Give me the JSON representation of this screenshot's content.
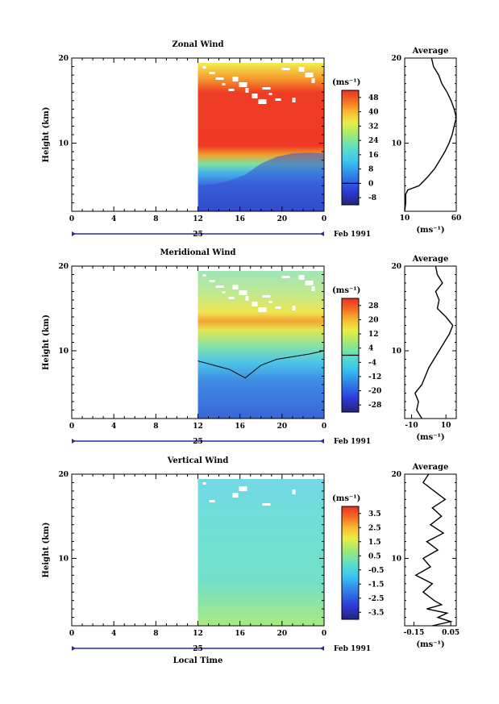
{
  "figure": {
    "x_axis_title": "Local Time",
    "date_label": "Feb 1991",
    "day_label": "25",
    "y_axis_title": "Height (km)",
    "unit_label": "(ms⁻¹)",
    "unit_label_avg": "(ms⁻¹)",
    "avg_title": "Average"
  },
  "chart_data": [
    {
      "type": "heatmap",
      "title": "Zonal Wind",
      "xlabel": "",
      "ylabel": "Height (km)",
      "x_ticks": [
        "0",
        "4",
        "8",
        "12",
        "16",
        "20",
        "0"
      ],
      "x_range_hours": [
        0,
        24
      ],
      "data_start_hour": 12,
      "y_ticks": [
        "10",
        "20"
      ],
      "ylim": [
        2,
        20
      ],
      "colorbar": {
        "ticks": [
          "48",
          "40",
          "32",
          "24",
          "16",
          "8",
          "0",
          "-8"
        ],
        "range": [
          -12,
          52
        ],
        "zero_line": 0
      },
      "jet_base_km": [
        5.0,
        5.2,
        5.6,
        6.3,
        7.6,
        8.4,
        8.8,
        8.9,
        8.8
      ],
      "average_profile": {
        "title": "Average",
        "xlabel": "(ms⁻¹)",
        "x_ticks": [
          "10",
          "60"
        ],
        "xlim": [
          10,
          60
        ],
        "y_ticks": [
          "10",
          "20"
        ],
        "heights_km": [
          2,
          3,
          4,
          4.5,
          5,
          6,
          7,
          8,
          9,
          10,
          11,
          12,
          13,
          14,
          15,
          16,
          17,
          18,
          19,
          20
        ],
        "values": [
          10,
          11,
          11,
          13,
          24,
          32,
          39,
          44,
          49,
          53,
          56,
          58,
          60,
          58,
          55,
          51,
          46,
          43,
          38,
          36
        ]
      }
    },
    {
      "type": "heatmap",
      "title": "Meridional Wind",
      "xlabel": "",
      "ylabel": "Height (km)",
      "x_ticks": [
        "0",
        "4",
        "8",
        "12",
        "16",
        "20",
        "0"
      ],
      "x_range_hours": [
        0,
        24
      ],
      "data_start_hour": 12,
      "y_ticks": [
        "10",
        "20"
      ],
      "ylim": [
        2,
        20
      ],
      "colorbar": {
        "ticks": [
          "28",
          "20",
          "12",
          "4",
          "-4",
          "-12",
          "-20",
          "-28"
        ],
        "range": [
          -32,
          32
        ],
        "zero_line": 0
      },
      "zero_contour_km": [
        8.8,
        8.3,
        7.8,
        6.8,
        8.3,
        9.0,
        9.3,
        9.6,
        10.0
      ],
      "average_profile": {
        "title": "Average",
        "xlabel": "(ms⁻¹)",
        "x_ticks": [
          "-10",
          "10"
        ],
        "xlim": [
          -14,
          16
        ],
        "y_ticks": [
          "10",
          "20"
        ],
        "heights_km": [
          2,
          3,
          4,
          5,
          6,
          7,
          8,
          9,
          10,
          11,
          12,
          13,
          14,
          15,
          16,
          17,
          18,
          19,
          20
        ],
        "values": [
          -4,
          -7,
          -6,
          -8,
          -4,
          -2,
          0,
          3,
          6,
          9,
          12,
          14,
          10,
          5,
          6,
          4,
          8,
          5,
          4
        ]
      }
    },
    {
      "type": "heatmap",
      "title": "Vertical Wind",
      "xlabel": "Local Time",
      "ylabel": "Height (km)",
      "x_ticks": [
        "0",
        "4",
        "8",
        "12",
        "16",
        "20",
        "0"
      ],
      "x_range_hours": [
        0,
        24
      ],
      "data_start_hour": 12,
      "y_ticks": [
        "10",
        "20"
      ],
      "ylim": [
        2,
        20
      ],
      "colorbar": {
        "ticks": [
          "3.5",
          "2.5",
          "1.5",
          "0.5",
          "-0.5",
          "-1.5",
          "-2.5",
          "-3.5"
        ],
        "range": [
          -4,
          4
        ],
        "zero_line": null
      },
      "average_profile": {
        "title": "Average",
        "xlabel": "(ms⁻¹)",
        "x_ticks": [
          "-0.15",
          "0.05"
        ],
        "xlim": [
          -0.2,
          0.08
        ],
        "y_ticks": [
          "10",
          "20"
        ],
        "heights_km": [
          2,
          2.5,
          3,
          3.5,
          4,
          4.5,
          5,
          6,
          7,
          8,
          9,
          10,
          11,
          12,
          13,
          14,
          15,
          16,
          17,
          18,
          19,
          20
        ],
        "values": [
          -0.05,
          0.05,
          -0.02,
          0.03,
          -0.08,
          0.0,
          -0.04,
          -0.1,
          -0.05,
          -0.14,
          -0.06,
          -0.1,
          -0.02,
          -0.08,
          0.01,
          -0.06,
          0.0,
          -0.05,
          0.02,
          -0.04,
          -0.1,
          -0.07
        ]
      }
    }
  ]
}
